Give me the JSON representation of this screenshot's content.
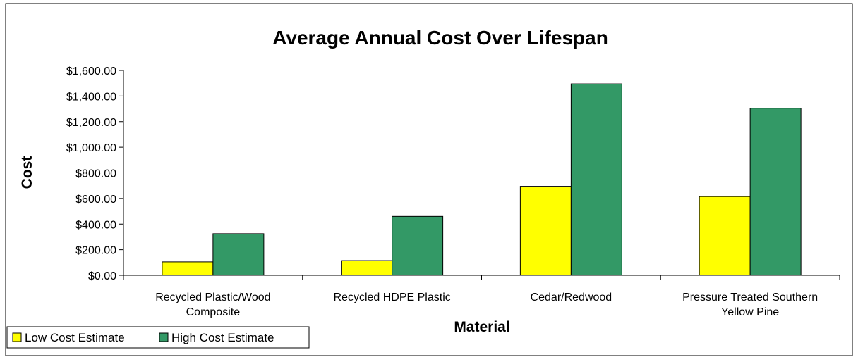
{
  "chart_data": {
    "type": "bar",
    "title": "Average Annual Cost Over Lifespan",
    "xlabel": "Material",
    "ylabel": "Cost",
    "categories": [
      [
        "Recycled Plastic/Wood",
        "Composite"
      ],
      [
        "Recycled HDPE Plastic"
      ],
      [
        "Cedar/Redwood"
      ],
      [
        "Pressure Treated Southern",
        "Yellow Pine"
      ]
    ],
    "series": [
      {
        "name": "Low Cost Estimate",
        "color": "#ffff00",
        "values": [
          105,
          115,
          695,
          615
        ]
      },
      {
        "name": "High Cost Estimate",
        "color": "#339966",
        "values": [
          325,
          460,
          1495,
          1305
        ]
      }
    ],
    "ylim": [
      0,
      1600
    ],
    "yticks": [
      0,
      200,
      400,
      600,
      800,
      1000,
      1200,
      1400,
      1600
    ],
    "ytick_labels": [
      "$0.00",
      "$200.00",
      "$400.00",
      "$600.00",
      "$800.00",
      "$1,000.00",
      "$1,200.00",
      "$1,400.00",
      "$1,600.00"
    ],
    "grid": false,
    "legend_position": "bottom-left"
  }
}
